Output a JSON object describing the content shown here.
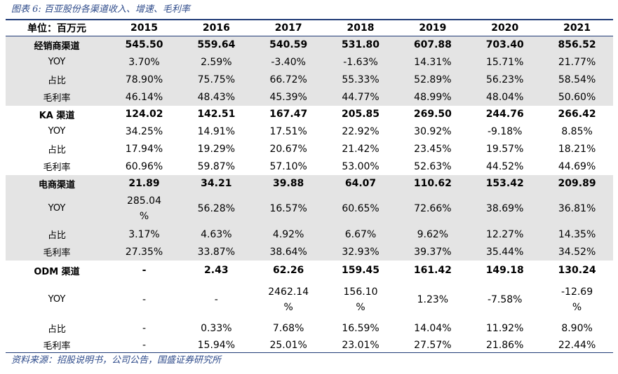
{
  "caption": "图表 6:  百亚股份各渠道收入、增速、毛利率",
  "header": {
    "unit_label": "单位：百万元",
    "years": [
      "2015",
      "2016",
      "2017",
      "2018",
      "2019",
      "2020",
      "2021"
    ]
  },
  "groups": [
    {
      "name": "经销商渠道",
      "values": [
        "545.50",
        "559.64",
        "540.59",
        "531.80",
        "607.88",
        "703.40",
        "856.52"
      ],
      "rows": [
        {
          "label": "YOY",
          "values": [
            "3.70%",
            "2.59%",
            "-3.40%",
            "-1.63%",
            "14.31%",
            "15.71%",
            "21.77%"
          ]
        },
        {
          "label": "占比",
          "values": [
            "78.90%",
            "75.75%",
            "66.72%",
            "55.33%",
            "52.89%",
            "56.23%",
            "58.54%"
          ]
        },
        {
          "label": "毛利率",
          "values": [
            "46.14%",
            "48.43%",
            "45.39%",
            "44.77%",
            "48.99%",
            "48.04%",
            "50.60%"
          ]
        }
      ]
    },
    {
      "name": "KA 渠道",
      "values": [
        "124.02",
        "142.51",
        "167.47",
        "205.85",
        "269.50",
        "244.76",
        "266.42"
      ],
      "rows": [
        {
          "label": "YOY",
          "values": [
            "34.25%",
            "14.91%",
            "17.51%",
            "22.92%",
            "30.92%",
            "-9.18%",
            "8.85%"
          ]
        },
        {
          "label": "占比",
          "values": [
            "17.94%",
            "19.29%",
            "20.67%",
            "21.42%",
            "23.45%",
            "19.57%",
            "18.21%"
          ]
        },
        {
          "label": "毛利率",
          "values": [
            "60.96%",
            "59.87%",
            "57.10%",
            "53.00%",
            "52.63%",
            "44.52%",
            "44.69%"
          ]
        }
      ]
    },
    {
      "name": "电商渠道",
      "values": [
        "21.89",
        "34.21",
        "39.88",
        "64.07",
        "110.62",
        "153.42",
        "209.89"
      ],
      "rows": [
        {
          "label": "YOY",
          "values": [
            "285.04\n%",
            "56.28%",
            "16.57%",
            "60.65%",
            "72.66%",
            "38.69%",
            "36.81%"
          ]
        },
        {
          "label": "占比",
          "values": [
            "3.17%",
            "4.63%",
            "4.92%",
            "6.67%",
            "9.62%",
            "12.27%",
            "14.35%"
          ]
        },
        {
          "label": "毛利率",
          "values": [
            "27.35%",
            "33.87%",
            "38.64%",
            "32.93%",
            "39.37%",
            "35.44%",
            "34.52%"
          ]
        }
      ]
    },
    {
      "name": "ODM 渠道",
      "values": [
        "-",
        "2.43",
        "62.26",
        "159.45",
        "161.42",
        "149.18",
        "130.24"
      ],
      "rows": [
        {
          "label": "YOY",
          "values": [
            "-",
            "-",
            "2462.14\n%",
            "156.10\n%",
            "1.23%",
            "-7.58%",
            "-12.69\n%"
          ]
        },
        {
          "label": "占比",
          "values": [
            "-",
            "0.33%",
            "7.68%",
            "16.59%",
            "14.04%",
            "11.92%",
            "8.90%"
          ]
        },
        {
          "label": "毛利率",
          "values": [
            "-",
            "15.94%",
            "25.01%",
            "23.01%",
            "27.57%",
            "21.86%",
            "22.44%"
          ]
        }
      ]
    }
  ],
  "source": "资料来源：招股说明书，公司公告，国盛证券研究所"
}
